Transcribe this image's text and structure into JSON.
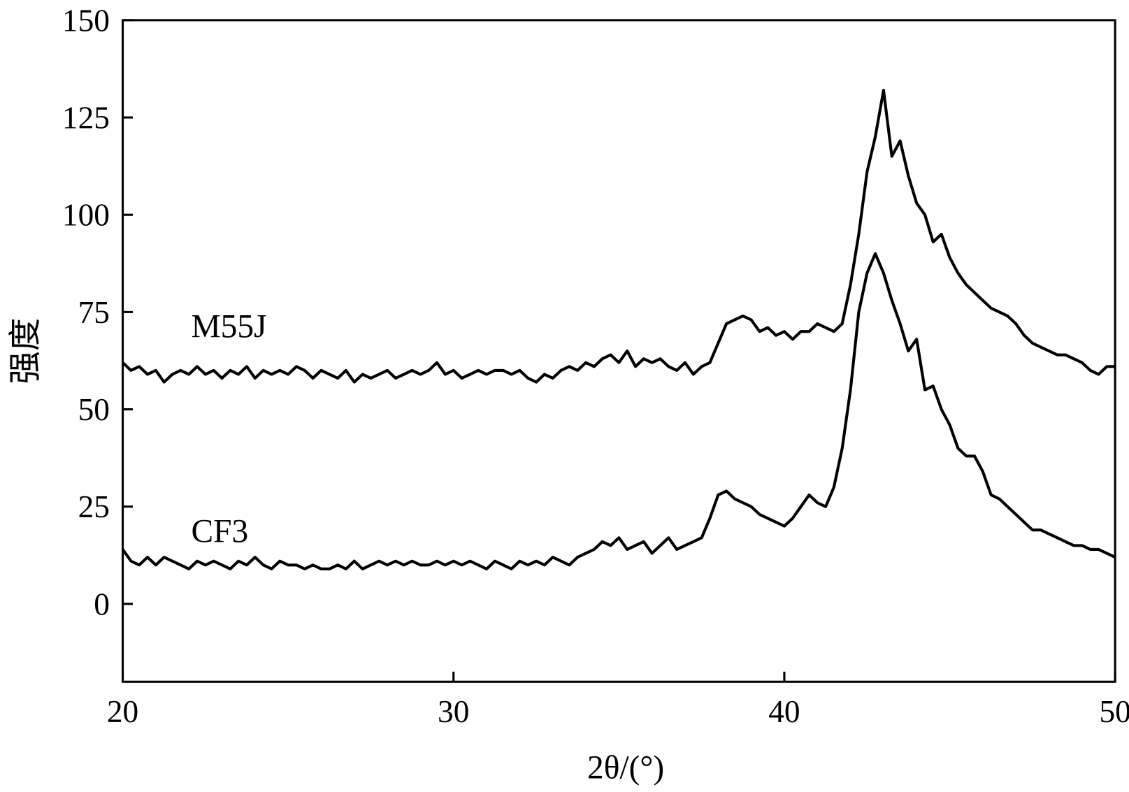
{
  "chart_data": {
    "type": "line",
    "xlabel": "2θ/(°)",
    "ylabel": "强度",
    "x": [
      20,
      20.25,
      20.5,
      20.75,
      21,
      21.25,
      21.5,
      21.75,
      22,
      22.25,
      22.5,
      22.75,
      23,
      23.25,
      23.5,
      23.75,
      24,
      24.25,
      24.5,
      24.75,
      25,
      25.25,
      25.5,
      25.75,
      26,
      26.25,
      26.5,
      26.75,
      27,
      27.25,
      27.5,
      27.75,
      28,
      28.25,
      28.5,
      28.75,
      29,
      29.25,
      29.5,
      29.75,
      30,
      30.25,
      30.5,
      30.75,
      31,
      31.25,
      31.5,
      31.75,
      32,
      32.25,
      32.5,
      32.75,
      33,
      33.25,
      33.5,
      33.75,
      34,
      34.25,
      34.5,
      34.75,
      35,
      35.25,
      35.5,
      35.75,
      36,
      36.25,
      36.5,
      36.75,
      37,
      37.25,
      37.5,
      37.75,
      38,
      38.25,
      38.5,
      38.75,
      39,
      39.25,
      39.5,
      39.75,
      40,
      40.25,
      40.5,
      40.75,
      41,
      41.25,
      41.5,
      41.75,
      42,
      42.25,
      42.5,
      42.75,
      43,
      43.25,
      43.5,
      43.75,
      44,
      44.25,
      44.5,
      44.75,
      45,
      45.25,
      45.5,
      45.75,
      46,
      46.25,
      46.5,
      46.75,
      47,
      47.25,
      47.5,
      47.75,
      48,
      48.25,
      48.5,
      48.75,
      49,
      49.25,
      49.5,
      49.75,
      50
    ],
    "series": [
      {
        "name": "M55J",
        "color": "#000000",
        "values": [
          62,
          60,
          61,
          59,
          60,
          57,
          59,
          60,
          59,
          61,
          59,
          60,
          58,
          60,
          59,
          61,
          58,
          60,
          59,
          60,
          59,
          61,
          60,
          58,
          60,
          59,
          58,
          60,
          57,
          59,
          58,
          59,
          60,
          58,
          59,
          60,
          59,
          60,
          62,
          59,
          60,
          58,
          59,
          60,
          59,
          60,
          60,
          59,
          60,
          58,
          57,
          59,
          58,
          60,
          61,
          60,
          62,
          61,
          63,
          64,
          62,
          65,
          61,
          63,
          62,
          63,
          61,
          60,
          62,
          59,
          61,
          62,
          67,
          72,
          73,
          74,
          73,
          70,
          71,
          69,
          70,
          68,
          70,
          70,
          72,
          71,
          70,
          72,
          82,
          95,
          111,
          120,
          132,
          115,
          119,
          110,
          103,
          100,
          93,
          95,
          89,
          85,
          82,
          80,
          78,
          76,
          75,
          74,
          72,
          69,
          67,
          66,
          65,
          64,
          64,
          63,
          62,
          60,
          59,
          61,
          61
        ]
      },
      {
        "name": "CF3",
        "color": "#000000",
        "values": [
          14,
          11,
          10,
          12,
          10,
          12,
          11,
          10,
          9,
          11,
          10,
          11,
          10,
          9,
          11,
          10,
          12,
          10,
          9,
          11,
          10,
          10,
          9,
          10,
          9,
          9,
          10,
          9,
          11,
          9,
          10,
          11,
          10,
          11,
          10,
          11,
          10,
          10,
          11,
          10,
          11,
          10,
          11,
          10,
          9,
          11,
          10,
          9,
          11,
          10,
          11,
          10,
          12,
          11,
          10,
          12,
          13,
          14,
          16,
          15,
          17,
          14,
          15,
          16,
          13,
          15,
          17,
          14,
          15,
          16,
          17,
          22,
          28,
          29,
          27,
          26,
          25,
          23,
          22,
          21,
          20,
          22,
          25,
          28,
          26,
          25,
          30,
          40,
          55,
          75,
          85,
          90,
          85,
          78,
          72,
          65,
          68,
          55,
          56,
          50,
          46,
          40,
          38,
          38,
          34,
          28,
          27,
          25,
          23,
          21,
          19,
          19,
          18,
          17,
          16,
          15,
          15,
          14,
          14,
          13,
          12
        ]
      }
    ],
    "xlim": [
      20,
      50
    ],
    "xticks": [
      20,
      30,
      40,
      50
    ],
    "ylim": [
      -20,
      150
    ],
    "yticks": [
      0,
      25,
      50,
      75,
      100,
      125,
      150
    ],
    "grid": false
  }
}
